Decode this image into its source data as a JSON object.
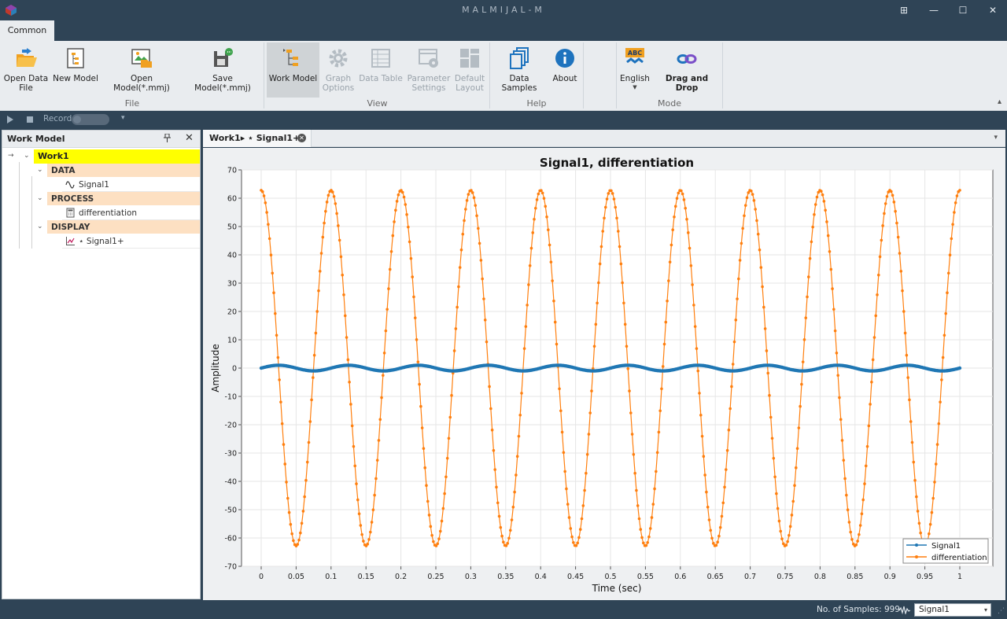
{
  "window": {
    "title": "MALMIJAL-M",
    "buttons": {
      "snap": "⊞",
      "minimize": "—",
      "maximize": "☐",
      "close": "✕"
    }
  },
  "ribbon": {
    "tab": "Common",
    "groups": {
      "file": "File",
      "view": "View",
      "help": "Help",
      "mode": "Mode"
    },
    "buttons": {
      "open_data_file": "Open Data File",
      "new_model": "New Model",
      "open_model": "Open Model(*.mmj)",
      "save_model": "Save Model(*.mmj)",
      "work_model": "Work Model",
      "graph_options": "Graph Options",
      "data_table": "Data Table",
      "parameter_settings": "Parameter Settings",
      "default_layout": "Default Layout",
      "data_samples": "Data Samples",
      "about": "About",
      "english": "English",
      "drag_and_drop": "Drag and Drop"
    },
    "language_badge": "ABC",
    "collapse": "▴"
  },
  "recordbar": {
    "record_label": "Record",
    "dropdown": "▾"
  },
  "work_model_panel": {
    "title": "Work Model",
    "pin": "📌",
    "close": "✕",
    "tree": {
      "root": "Work1",
      "data_category": "DATA",
      "data_item": "Signal1",
      "process_category": "PROCESS",
      "process_item": "differentiation",
      "display_category": "DISPLAY",
      "display_item": "⋆ Signal1+"
    },
    "arrow": "→",
    "expand": "⌄"
  },
  "document_tab": {
    "label": "Work1▸ ⋆ Signal1+",
    "close": "⊗",
    "menu": "▾"
  },
  "status_bar": {
    "samples": "No. of Samples: 999",
    "selected_signal": "Signal1",
    "select_arrow": "▾",
    "grip": "⋰"
  },
  "colors": {
    "signal1": "#1f77b4",
    "differentiation": "#ff7f0e",
    "chrome": "#2f4456",
    "ribbon": "#e9ecef",
    "work_highlight": "#ffff00",
    "category_fill": "#fde0c2"
  },
  "chart_data": {
    "type": "line",
    "title": "Signal1, differentiation",
    "xlabel": "Time (sec)",
    "ylabel": "Amplitude",
    "xlim": [
      0,
      1
    ],
    "ylim": [
      -70,
      70
    ],
    "xticks": [
      "0",
      "0.05",
      "0.1",
      "0.15",
      "0.2",
      "0.25",
      "0.3",
      "0.35",
      "0.4",
      "0.45",
      "0.5",
      "0.55",
      "0.6",
      "0.65",
      "0.7",
      "0.75",
      "0.8",
      "0.85",
      "0.9",
      "0.95",
      "1"
    ],
    "yticks": [
      "70",
      "60",
      "50",
      "40",
      "30",
      "20",
      "10",
      "0",
      "-10",
      "-20",
      "-30",
      "-40",
      "-50",
      "-60",
      "-70"
    ],
    "grid": true,
    "legend_position": "bottom-right",
    "series": [
      {
        "name": "Signal1",
        "function": "sin",
        "amplitude": 1,
        "frequency_hz": 10,
        "samples": 999
      },
      {
        "name": "differentiation",
        "function": "cos",
        "amplitude": 62.8,
        "frequency_hz": 10,
        "samples": 999
      }
    ]
  }
}
